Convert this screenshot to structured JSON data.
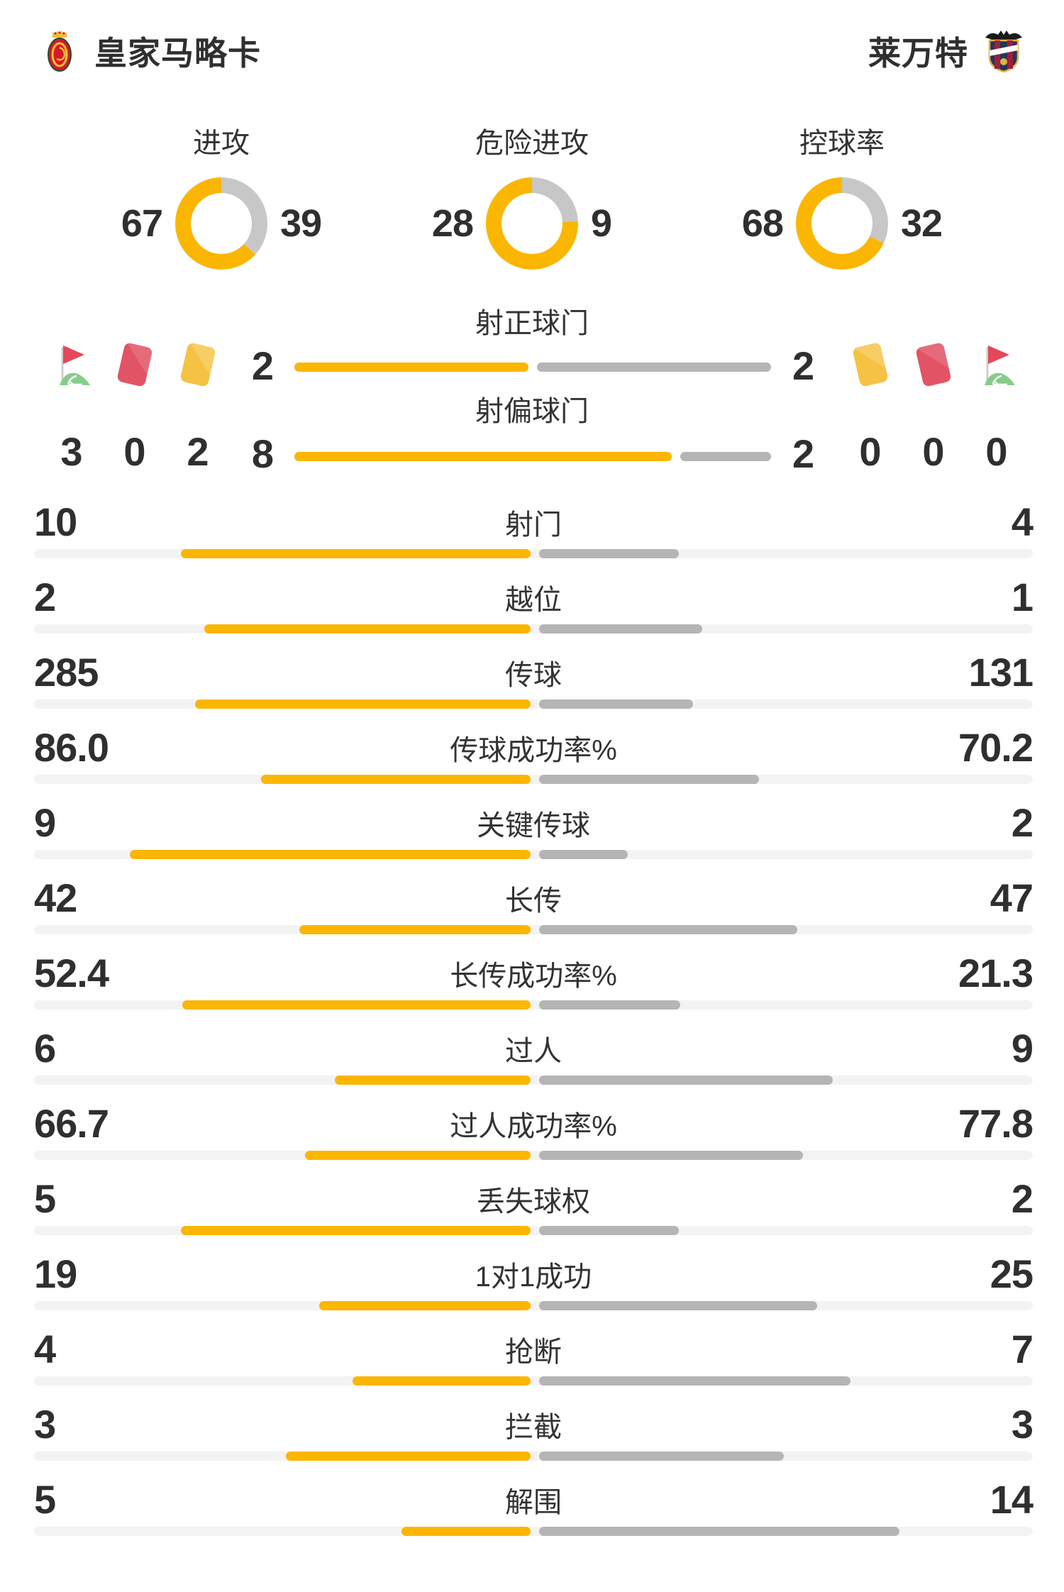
{
  "colors": {
    "accent_yellow": "#FBB602",
    "bar_gray": "#B5B5B5",
    "track_gray": "#F3F3F4",
    "donut_gray": "#C7C7C7",
    "card_red": "#E25365",
    "card_yellow": "#F6C244",
    "flag_green": "#87CC8B",
    "text": "#2F2F2F"
  },
  "header": {
    "home": {
      "name": "皇家马略卡",
      "crest": "mallorca-crest"
    },
    "away": {
      "name": "莱万特",
      "crest": "levante-crest"
    }
  },
  "donuts": [
    {
      "label": "进攻",
      "home": "67",
      "away": "39"
    },
    {
      "label": "危险进攻",
      "home": "28",
      "away": "9"
    },
    {
      "label": "控球率",
      "home": "68",
      "away": "32"
    }
  ],
  "discipline": {
    "home_icons": [
      {
        "icon": "corner-flag-icon",
        "value": "3"
      },
      {
        "icon": "red-card-icon",
        "value": "0"
      },
      {
        "icon": "yellow-card-icon",
        "value": "2"
      }
    ],
    "away_icons": [
      {
        "icon": "yellow-card-icon",
        "value": "0"
      },
      {
        "icon": "red-card-icon",
        "value": "0"
      },
      {
        "icon": "corner-flag-icon",
        "value": "0"
      }
    ],
    "bars": [
      {
        "label": "射正球门",
        "home": "2",
        "away": "2"
      },
      {
        "label": "射偏球门",
        "home": "8",
        "away": "2"
      }
    ]
  },
  "stats": {
    "rows": [
      {
        "label": "射门",
        "home": "10",
        "away": "4"
      },
      {
        "label": "越位",
        "home": "2",
        "away": "1"
      },
      {
        "label": "传球",
        "home": "285",
        "away": "131"
      },
      {
        "label": "传球成功率%",
        "home": "86.0",
        "away": "70.2"
      },
      {
        "label": "关键传球",
        "home": "9",
        "away": "2"
      },
      {
        "label": "长传",
        "home": "42",
        "away": "47"
      },
      {
        "label": "长传成功率%",
        "home": "52.4",
        "away": "21.3"
      },
      {
        "label": "过人",
        "home": "6",
        "away": "9"
      },
      {
        "label": "过人成功率%",
        "home": "66.7",
        "away": "77.8"
      },
      {
        "label": "丢失球权",
        "home": "5",
        "away": "2"
      },
      {
        "label": "1对1成功",
        "home": "19",
        "away": "25"
      },
      {
        "label": "抢断",
        "home": "4",
        "away": "7"
      },
      {
        "label": "拦截",
        "home": "3",
        "away": "3"
      },
      {
        "label": "解围",
        "home": "5",
        "away": "14"
      }
    ]
  }
}
